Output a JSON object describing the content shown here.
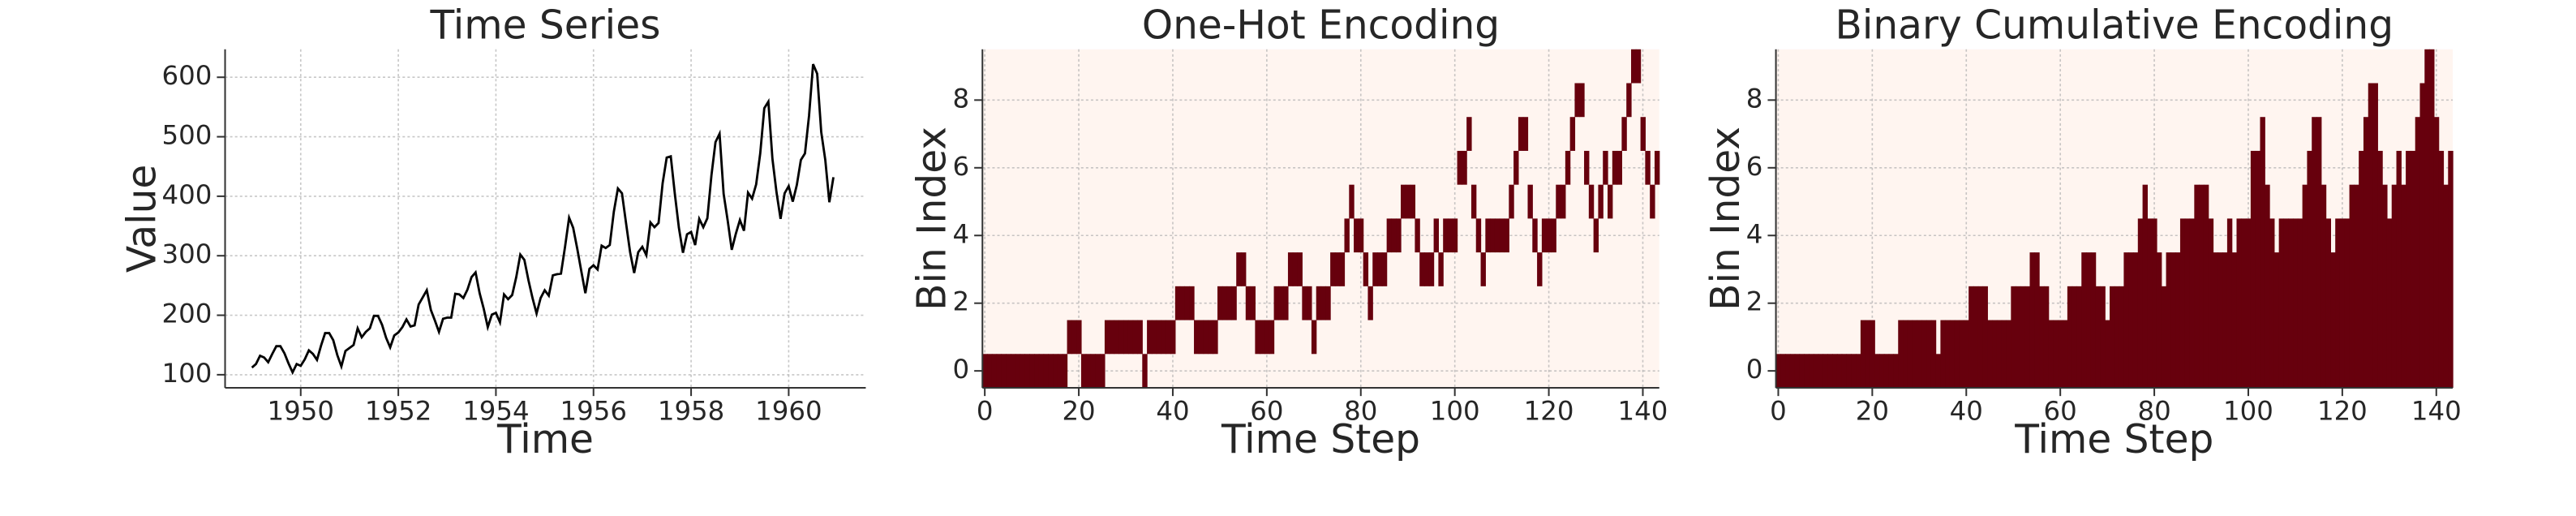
{
  "chart_data": [
    {
      "type": "line",
      "title": "Time Series",
      "xlabel": "Time",
      "ylabel": "Value",
      "color": "#000000",
      "grid": true,
      "x": [
        1949,
        1949.0833,
        1949.1667,
        1949.25,
        1949.3333,
        1949.4167,
        1949.5,
        1949.5833,
        1949.6667,
        1949.75,
        1949.8333,
        1949.9167,
        1950,
        1950.0833,
        1950.1667,
        1950.25,
        1950.3333,
        1950.4167,
        1950.5,
        1950.5833,
        1950.6667,
        1950.75,
        1950.8333,
        1950.9167,
        1951,
        1951.0833,
        1951.1667,
        1951.25,
        1951.3333,
        1951.4167,
        1951.5,
        1951.5833,
        1951.6667,
        1951.75,
        1951.8333,
        1951.9167,
        1952,
        1952.0833,
        1952.1667,
        1952.25,
        1952.3333,
        1952.4167,
        1952.5,
        1952.5833,
        1952.6667,
        1952.75,
        1952.8333,
        1952.9167,
        1953,
        1953.0833,
        1953.1667,
        1953.25,
        1953.3333,
        1953.4167,
        1953.5,
        1953.5833,
        1953.6667,
        1953.75,
        1953.8333,
        1953.9167,
        1954,
        1954.0833,
        1954.1667,
        1954.25,
        1954.3333,
        1954.4167,
        1954.5,
        1954.5833,
        1954.6667,
        1954.75,
        1954.8333,
        1954.9167,
        1955,
        1955.0833,
        1955.1667,
        1955.25,
        1955.3333,
        1955.4167,
        1955.5,
        1955.5833,
        1955.6667,
        1955.75,
        1955.8333,
        1955.9167,
        1956,
        1956.0833,
        1956.1667,
        1956.25,
        1956.3333,
        1956.4167,
        1956.5,
        1956.5833,
        1956.6667,
        1956.75,
        1956.8333,
        1956.9167,
        1957,
        1957.0833,
        1957.1667,
        1957.25,
        1957.3333,
        1957.4167,
        1957.5,
        1957.5833,
        1957.6667,
        1957.75,
        1957.8333,
        1957.9167,
        1958,
        1958.0833,
        1958.1667,
        1958.25,
        1958.3333,
        1958.4167,
        1958.5,
        1958.5833,
        1958.6667,
        1958.75,
        1958.8333,
        1958.9167,
        1959,
        1959.0833,
        1959.1667,
        1959.25,
        1959.3333,
        1959.4167,
        1959.5,
        1959.5833,
        1959.6667,
        1959.75,
        1959.8333,
        1959.9167,
        1960,
        1960.0833,
        1960.1667,
        1960.25,
        1960.3333,
        1960.4167,
        1960.5,
        1960.5833,
        1960.6667,
        1960.75,
        1960.8333,
        1960.9167
      ],
      "values": [
        112,
        118,
        132,
        129,
        121,
        135,
        148,
        148,
        136,
        119,
        104,
        118,
        115,
        126,
        141,
        135,
        125,
        149,
        170,
        170,
        158,
        133,
        114,
        140,
        145,
        150,
        178,
        163,
        172,
        178,
        199,
        199,
        184,
        162,
        146,
        166,
        171,
        180,
        193,
        181,
        183,
        218,
        230,
        242,
        209,
        191,
        172,
        194,
        196,
        196,
        236,
        235,
        229,
        243,
        264,
        272,
        237,
        211,
        180,
        201,
        204,
        188,
        235,
        227,
        234,
        264,
        302,
        293,
        259,
        229,
        203,
        229,
        242,
        233,
        267,
        269,
        270,
        315,
        364,
        347,
        312,
        274,
        237,
        278,
        284,
        277,
        317,
        313,
        318,
        374,
        413,
        405,
        355,
        306,
        271,
        306,
        315,
        301,
        356,
        348,
        355,
        422,
        465,
        467,
        404,
        347,
        305,
        336,
        340,
        318,
        362,
        348,
        363,
        435,
        491,
        505,
        404,
        359,
        310,
        337,
        360,
        342,
        406,
        396,
        420,
        472,
        548,
        559,
        463,
        407,
        362,
        405,
        417,
        391,
        419,
        461,
        472,
        535,
        622,
        606,
        508,
        461,
        390,
        432
      ],
      "xlim": [
        1948.45,
        1961.58
      ],
      "xticks": [
        1950,
        1952,
        1954,
        1956,
        1958,
        1960
      ],
      "ylim": [
        78,
        647
      ],
      "yticks": [
        100,
        200,
        300,
        400,
        500,
        600
      ]
    },
    {
      "type": "heatmap",
      "title": "One-Hot Encoding",
      "xlabel": "Time Step",
      "ylabel": "Bin Index",
      "color": "#67000d",
      "facecolor": "#fff5f0",
      "grid": true,
      "x": [
        0,
        1,
        2,
        3,
        4,
        5,
        6,
        7,
        8,
        9,
        10,
        11,
        12,
        13,
        14,
        15,
        16,
        17,
        18,
        19,
        20,
        21,
        22,
        23,
        24,
        25,
        26,
        27,
        28,
        29,
        30,
        31,
        32,
        33,
        34,
        35,
        36,
        37,
        38,
        39,
        40,
        41,
        42,
        43,
        44,
        45,
        46,
        47,
        48,
        49,
        50,
        51,
        52,
        53,
        54,
        55,
        56,
        57,
        58,
        59,
        60,
        61,
        62,
        63,
        64,
        65,
        66,
        67,
        68,
        69,
        70,
        71,
        72,
        73,
        74,
        75,
        76,
        77,
        78,
        79,
        80,
        81,
        82,
        83,
        84,
        85,
        86,
        87,
        88,
        89,
        90,
        91,
        92,
        93,
        94,
        95,
        96,
        97,
        98,
        99,
        100,
        101,
        102,
        103,
        104,
        105,
        106,
        107,
        108,
        109,
        110,
        111,
        112,
        113,
        114,
        115,
        116,
        117,
        118,
        119,
        120,
        121,
        122,
        123,
        124,
        125,
        126,
        127,
        128,
        129,
        130,
        131,
        132,
        133,
        134,
        135,
        136,
        137,
        138,
        139,
        140,
        141,
        142,
        143
      ],
      "values": [
        0,
        0,
        0,
        0,
        0,
        0,
        0,
        0,
        0,
        0,
        0,
        0,
        0,
        0,
        0,
        0,
        0,
        0,
        1,
        1,
        1,
        0,
        0,
        0,
        0,
        0,
        1,
        1,
        1,
        1,
        1,
        1,
        1,
        1,
        0,
        1,
        1,
        1,
        1,
        1,
        1,
        2,
        2,
        2,
        2,
        1,
        1,
        1,
        1,
        1,
        2,
        2,
        2,
        2,
        3,
        3,
        2,
        2,
        1,
        1,
        1,
        1,
        2,
        2,
        2,
        3,
        3,
        3,
        2,
        2,
        1,
        2,
        2,
        2,
        3,
        3,
        3,
        4,
        5,
        4,
        4,
        3,
        2,
        3,
        3,
        3,
        4,
        4,
        4,
        5,
        5,
        5,
        4,
        3,
        3,
        3,
        4,
        3,
        4,
        4,
        4,
        6,
        6,
        7,
        5,
        4,
        3,
        4,
        4,
        4,
        4,
        4,
        5,
        6,
        7,
        7,
        5,
        4,
        3,
        4,
        4,
        4,
        5,
        5,
        6,
        7,
        8,
        8,
        6,
        5,
        4,
        5,
        6,
        5,
        6,
        6,
        7,
        8,
        9,
        9,
        7,
        6,
        5,
        6
      ],
      "xlim": [
        -0.5,
        143.5
      ],
      "xticks": [
        0,
        20,
        40,
        60,
        80,
        100,
        120,
        140
      ],
      "ylim": [
        -0.5,
        9.5
      ],
      "yticks": [
        0,
        2,
        4,
        6,
        8
      ]
    },
    {
      "type": "bar",
      "title": "Binary Cumulative Encoding",
      "xlabel": "Time Step",
      "ylabel": "Bin Index",
      "color": "#67000d",
      "facecolor": "#fff5f0",
      "grid": true,
      "x": [
        0,
        1,
        2,
        3,
        4,
        5,
        6,
        7,
        8,
        9,
        10,
        11,
        12,
        13,
        14,
        15,
        16,
        17,
        18,
        19,
        20,
        21,
        22,
        23,
        24,
        25,
        26,
        27,
        28,
        29,
        30,
        31,
        32,
        33,
        34,
        35,
        36,
        37,
        38,
        39,
        40,
        41,
        42,
        43,
        44,
        45,
        46,
        47,
        48,
        49,
        50,
        51,
        52,
        53,
        54,
        55,
        56,
        57,
        58,
        59,
        60,
        61,
        62,
        63,
        64,
        65,
        66,
        67,
        68,
        69,
        70,
        71,
        72,
        73,
        74,
        75,
        76,
        77,
        78,
        79,
        80,
        81,
        82,
        83,
        84,
        85,
        86,
        87,
        88,
        89,
        90,
        91,
        92,
        93,
        94,
        95,
        96,
        97,
        98,
        99,
        100,
        101,
        102,
        103,
        104,
        105,
        106,
        107,
        108,
        109,
        110,
        111,
        112,
        113,
        114,
        115,
        116,
        117,
        118,
        119,
        120,
        121,
        122,
        123,
        124,
        125,
        126,
        127,
        128,
        129,
        130,
        131,
        132,
        133,
        134,
        135,
        136,
        137,
        138,
        139,
        140,
        141,
        142,
        143
      ],
      "values": [
        0,
        0,
        0,
        0,
        0,
        0,
        0,
        0,
        0,
        0,
        0,
        0,
        0,
        0,
        0,
        0,
        0,
        0,
        1,
        1,
        1,
        0,
        0,
        0,
        0,
        0,
        1,
        1,
        1,
        1,
        1,
        1,
        1,
        1,
        0,
        1,
        1,
        1,
        1,
        1,
        1,
        2,
        2,
        2,
        2,
        1,
        1,
        1,
        1,
        1,
        2,
        2,
        2,
        2,
        3,
        3,
        2,
        2,
        1,
        1,
        1,
        1,
        2,
        2,
        2,
        3,
        3,
        3,
        2,
        2,
        1,
        2,
        2,
        2,
        3,
        3,
        3,
        4,
        5,
        4,
        4,
        3,
        2,
        3,
        3,
        3,
        4,
        4,
        4,
        5,
        5,
        5,
        4,
        3,
        3,
        3,
        4,
        3,
        4,
        4,
        4,
        6,
        6,
        7,
        5,
        4,
        3,
        4,
        4,
        4,
        4,
        4,
        5,
        6,
        7,
        7,
        5,
        4,
        3,
        4,
        4,
        4,
        5,
        5,
        6,
        7,
        8,
        8,
        6,
        5,
        4,
        5,
        6,
        5,
        6,
        6,
        7,
        8,
        9,
        9,
        7,
        6,
        5,
        6
      ],
      "xlim": [
        -0.5,
        143.5
      ],
      "xticks": [
        0,
        20,
        40,
        60,
        80,
        100,
        120,
        140
      ],
      "ylim": [
        -0.5,
        9.5
      ],
      "yticks": [
        0,
        2,
        4,
        6,
        8
      ]
    }
  ]
}
